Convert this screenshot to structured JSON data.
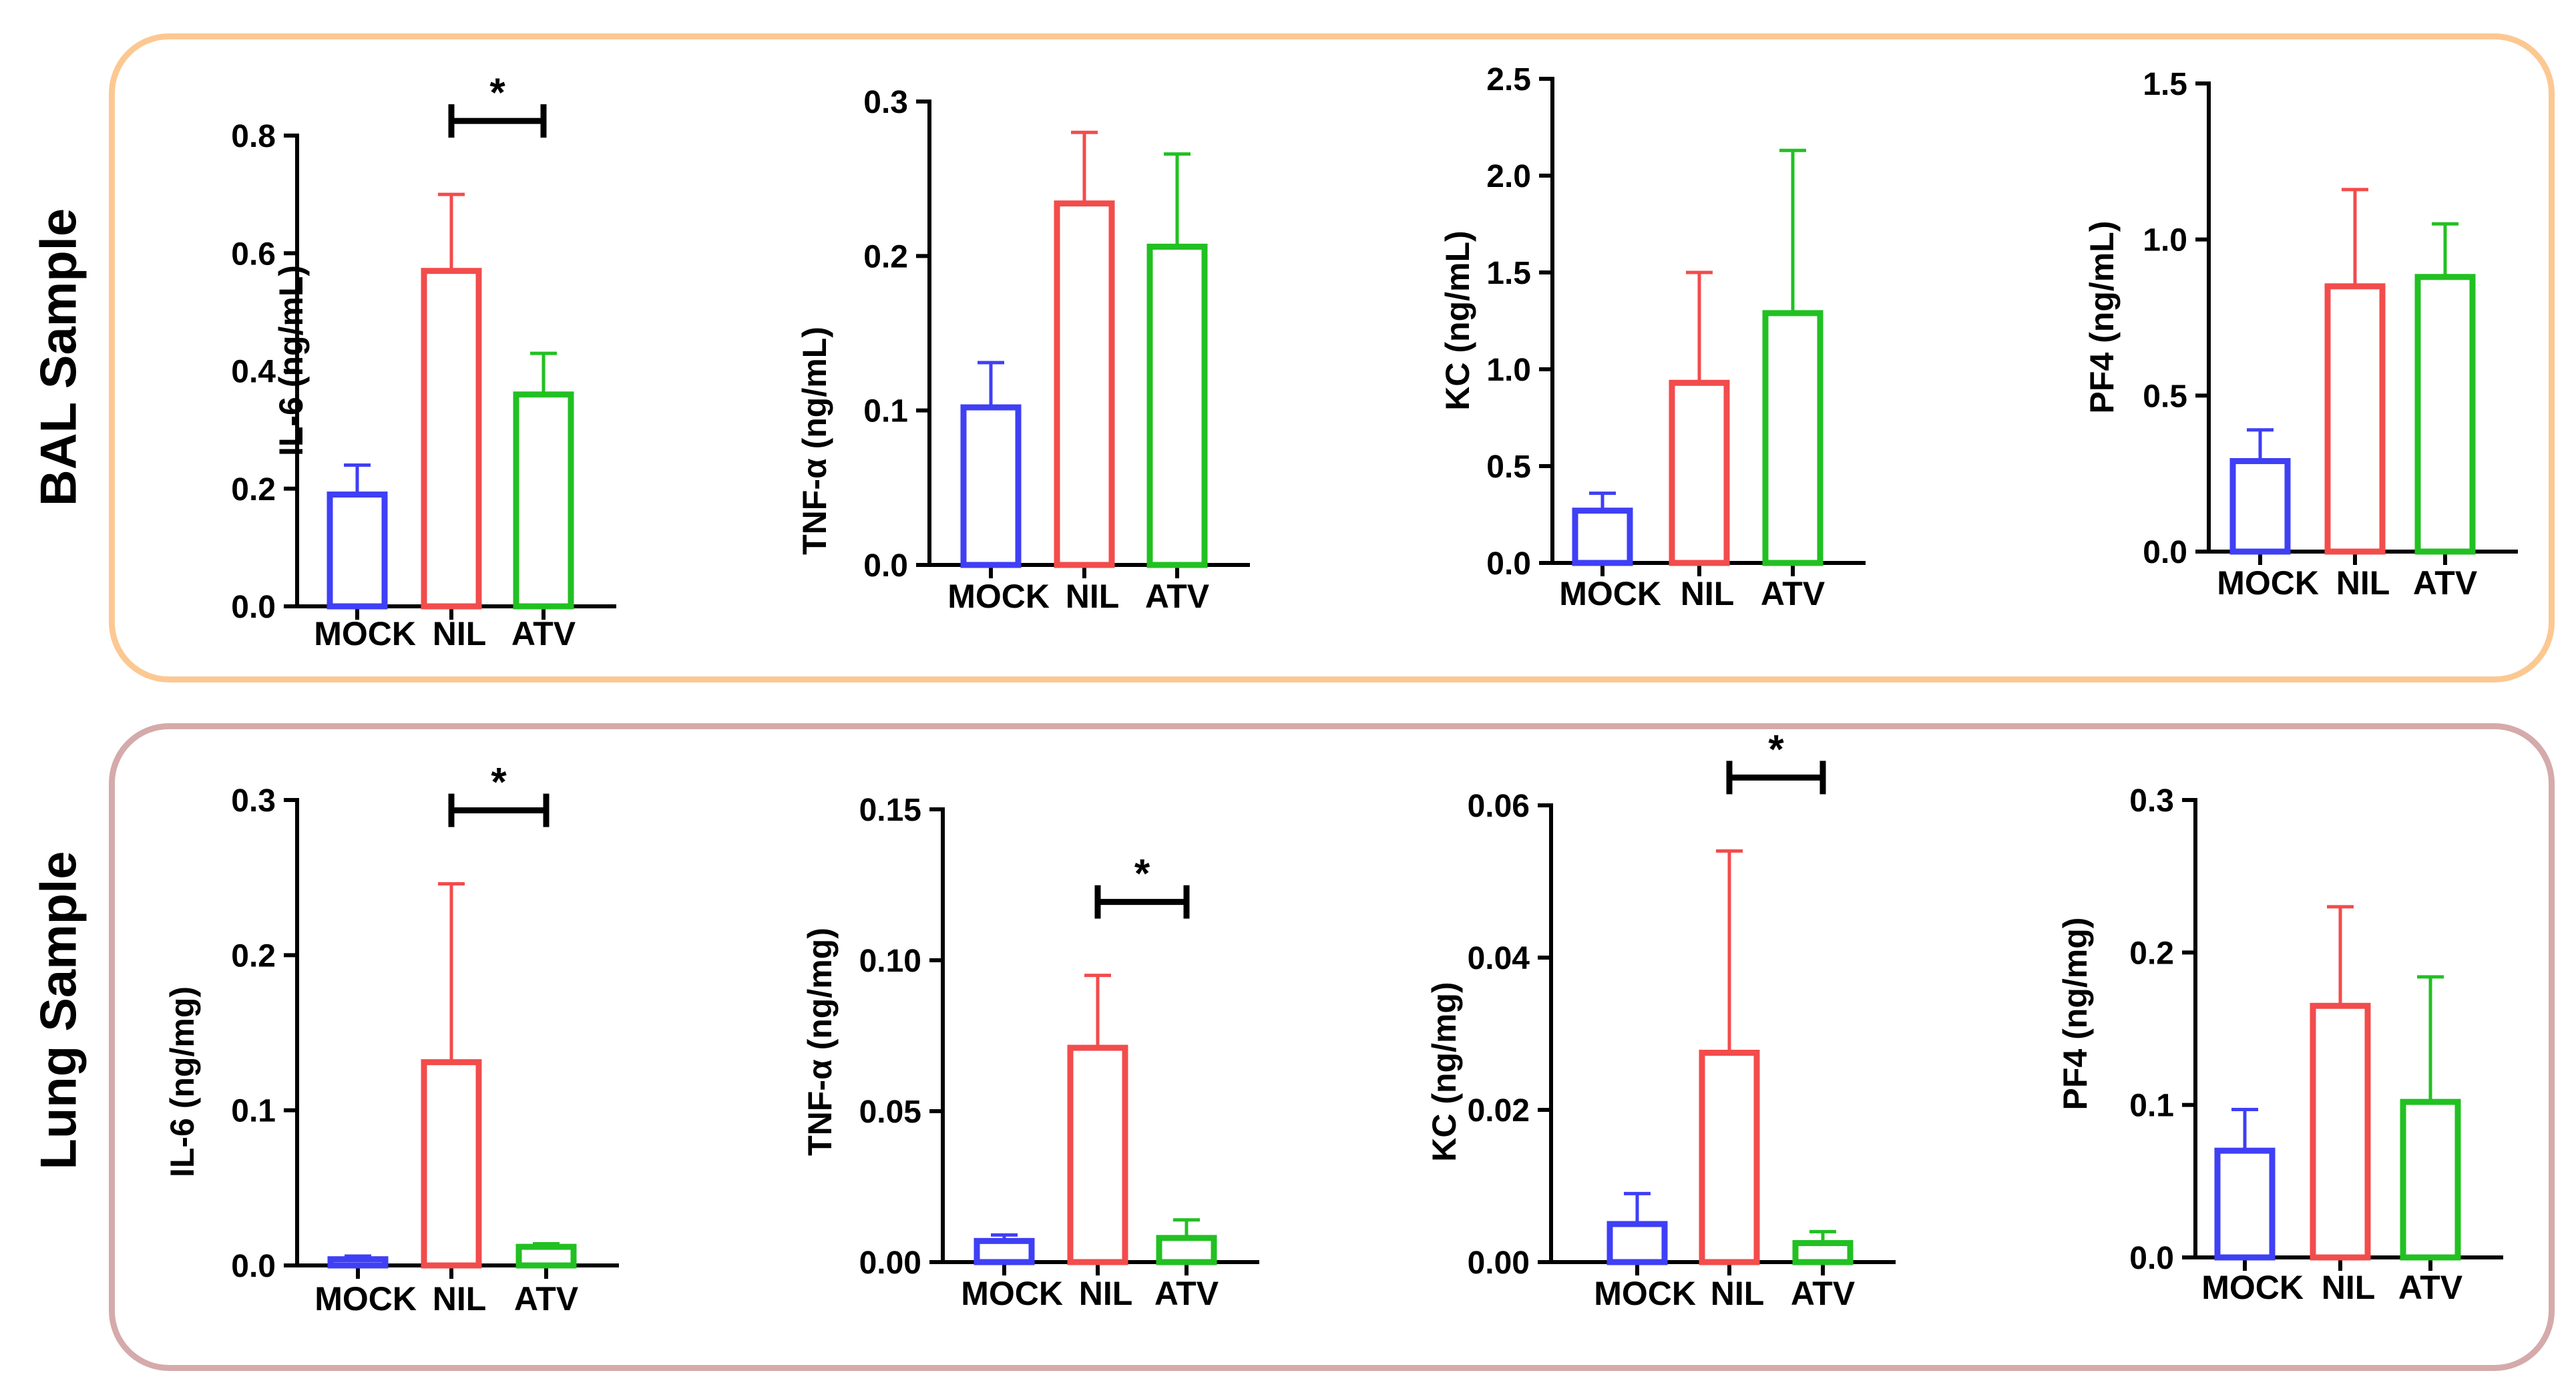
{
  "panels": {
    "bal": {
      "label": "BAL Sample",
      "border_color": "#FCC892"
    },
    "lung": {
      "label": "Lung Sample",
      "border_color": "#D5AAAA"
    }
  },
  "colors": {
    "MOCK": "#3F3FF5",
    "NIL": "#F24C4C",
    "ATV": "#22C022"
  },
  "chart_data": [
    {
      "id": "bal-il6",
      "type": "bar",
      "ylabel": "IL-6 (ng/mL)",
      "categories": [
        "MOCK",
        "NIL",
        "ATV"
      ],
      "values": [
        0.19,
        0.57,
        0.36
      ],
      "errors": [
        0.05,
        0.13,
        0.07
      ],
      "ylim": [
        0,
        0.8
      ],
      "yticks": [
        "0.0",
        "0.2",
        "0.4",
        "0.6",
        "0.8"
      ],
      "significance": [
        {
          "from": "NIL",
          "to": "ATV",
          "label": "*"
        }
      ]
    },
    {
      "id": "bal-tnf",
      "type": "bar",
      "ylabel": "TNF-α (ng/mL)",
      "categories": [
        "MOCK",
        "NIL",
        "ATV"
      ],
      "values": [
        0.102,
        0.234,
        0.206
      ],
      "errors": [
        0.029,
        0.046,
        0.06
      ],
      "ylim": [
        0,
        0.3
      ],
      "yticks": [
        "0.0",
        "0.1",
        "0.2",
        "0.3"
      ],
      "significance": []
    },
    {
      "id": "bal-kc",
      "type": "bar",
      "ylabel": "KC (ng/mL)",
      "categories": [
        "MOCK",
        "NIL",
        "ATV"
      ],
      "values": [
        0.27,
        0.93,
        1.29
      ],
      "errors": [
        0.09,
        0.57,
        0.84
      ],
      "ylim": [
        0,
        2.5
      ],
      "yticks": [
        "0.0",
        "0.5",
        "1.0",
        "1.5",
        "2.0",
        "2.5"
      ],
      "significance": []
    },
    {
      "id": "bal-pf4",
      "type": "bar",
      "ylabel": "PF4 (ng/mL)",
      "categories": [
        "MOCK",
        "NIL",
        "ATV"
      ],
      "values": [
        0.29,
        0.85,
        0.88
      ],
      "errors": [
        0.1,
        0.31,
        0.17
      ],
      "ylim": [
        0,
        1.5
      ],
      "yticks": [
        "0.0",
        "0.5",
        "1.0",
        "1.5"
      ],
      "significance": []
    },
    {
      "id": "lung-il6",
      "type": "bar",
      "ylabel": "IL-6 (ng/mg)",
      "categories": [
        "MOCK",
        "NIL",
        "ATV"
      ],
      "values": [
        0.004,
        0.131,
        0.012
      ],
      "errors": [
        0.002,
        0.115,
        0.002
      ],
      "ylim": [
        0,
        0.3
      ],
      "yticks": [
        "0.0",
        "0.1",
        "0.2",
        "0.3"
      ],
      "significance": [
        {
          "from": "NIL",
          "to": "ATV",
          "label": "*"
        }
      ]
    },
    {
      "id": "lung-tnf",
      "type": "bar",
      "ylabel": "TNF-α (ng/mg)",
      "categories": [
        "MOCK",
        "NIL",
        "ATV"
      ],
      "values": [
        0.007,
        0.071,
        0.008
      ],
      "errors": [
        0.002,
        0.024,
        0.006
      ],
      "ylim": [
        0,
        0.15
      ],
      "yticks": [
        "0.00",
        "0.05",
        "0.10",
        "0.15"
      ],
      "significance": [
        {
          "from": "NIL",
          "to": "ATV",
          "label": "*"
        }
      ]
    },
    {
      "id": "lung-kc",
      "type": "bar",
      "ylabel": "KC (ng/mg)",
      "categories": [
        "MOCK",
        "NIL",
        "ATV"
      ],
      "values": [
        0.005,
        0.0275,
        0.0025
      ],
      "errors": [
        0.004,
        0.0265,
        0.0015
      ],
      "ylim": [
        0,
        0.06
      ],
      "yticks": [
        "0.00",
        "0.02",
        "0.04",
        "0.06"
      ],
      "significance": [
        {
          "from": "NIL",
          "to": "ATV",
          "label": "*"
        }
      ]
    },
    {
      "id": "lung-pf4",
      "type": "bar",
      "ylabel": "PF4 (ng/mg)",
      "categories": [
        "MOCK",
        "NIL",
        "ATV"
      ],
      "values": [
        0.07,
        0.165,
        0.102
      ],
      "errors": [
        0.027,
        0.065,
        0.082
      ],
      "ylim": [
        0,
        0.3
      ],
      "yticks": [
        "0.0",
        "0.1",
        "0.2",
        "0.3"
      ],
      "significance": []
    }
  ]
}
